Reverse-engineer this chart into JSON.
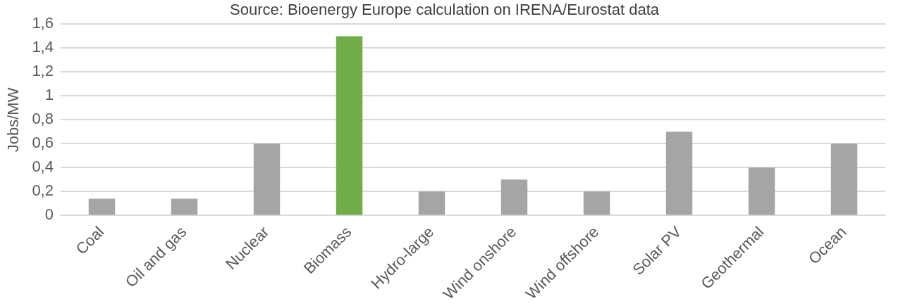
{
  "chart_data": {
    "type": "bar",
    "title": "Source: Bioenergy Europe calculation on IRENA/Eurostat data",
    "ylabel": "Jobs/MW",
    "categories": [
      "Coal",
      "Oil and gas",
      "Nuclear",
      "Biomass",
      "Hydro-large",
      "Wind onshore",
      "Wind offshore",
      "Solar PV",
      "Geothermal",
      "Ocean"
    ],
    "values": [
      0.14,
      0.14,
      0.6,
      1.5,
      0.2,
      0.3,
      0.2,
      0.7,
      0.4,
      0.6
    ],
    "colors": [
      "#a5a5a5",
      "#a5a5a5",
      "#a5a5a5",
      "#70ad47",
      "#a5a5a5",
      "#a5a5a5",
      "#a5a5a5",
      "#a5a5a5",
      "#a5a5a5",
      "#a5a5a5"
    ],
    "ylim": [
      0,
      1.6
    ],
    "yticks": [
      0,
      {
        "value": 0.2,
        "label": "0,2"
      },
      {
        "value": 0.4,
        "label": "0,4"
      },
      {
        "value": 0.6,
        "label": "0,6"
      },
      {
        "value": 0.8,
        "label": "0,8"
      },
      1,
      {
        "value": 1.2,
        "label": "1,2"
      },
      {
        "value": 1.4,
        "label": "1,4"
      },
      {
        "value": 1.6,
        "label": "1,6"
      }
    ],
    "grid": "y",
    "legend": false
  }
}
